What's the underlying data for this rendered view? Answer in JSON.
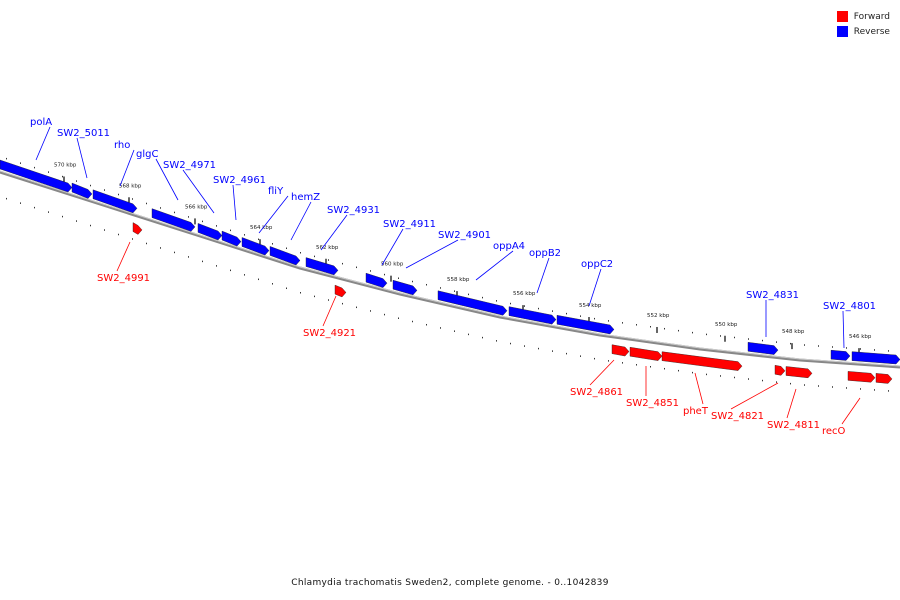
{
  "caption": "Chlamydia trachomatis Sweden2, complete genome. - 0..1042839",
  "legend": [
    {
      "label": "Forward",
      "color": "#ff0000"
    },
    {
      "label": "Reverse",
      "color": "#0000ff"
    }
  ],
  "colors": {
    "forward": "#ff0000",
    "reverse": "#0000ff",
    "backbone": "#888888"
  },
  "tick_labels": [
    "570 kbp",
    "568 kbp",
    "566 kbp",
    "564 kbp",
    "562 kbp",
    "560 kbp",
    "558 kbp",
    "556 kbp",
    "554 kbp",
    "552 kbp",
    "550 kbp",
    "548 kbp",
    "546 kbp"
  ],
  "genes_reverse": [
    "polA",
    "SW2_5011",
    "rho",
    "glgC",
    "SW2_4971",
    "SW2_4961",
    "fliY",
    "hemZ",
    "SW2_4931",
    "SW2_4911",
    "SW2_4901",
    "oppA4",
    "oppB2",
    "oppC2",
    "SW2_4831",
    "SW2_4801"
  ],
  "genes_forward": [
    "SW2_4991",
    "SW2_4921",
    "SW2_4861",
    "SW2_4851",
    "pheT",
    "SW2_4821",
    "SW2_4811",
    "recO"
  ]
}
